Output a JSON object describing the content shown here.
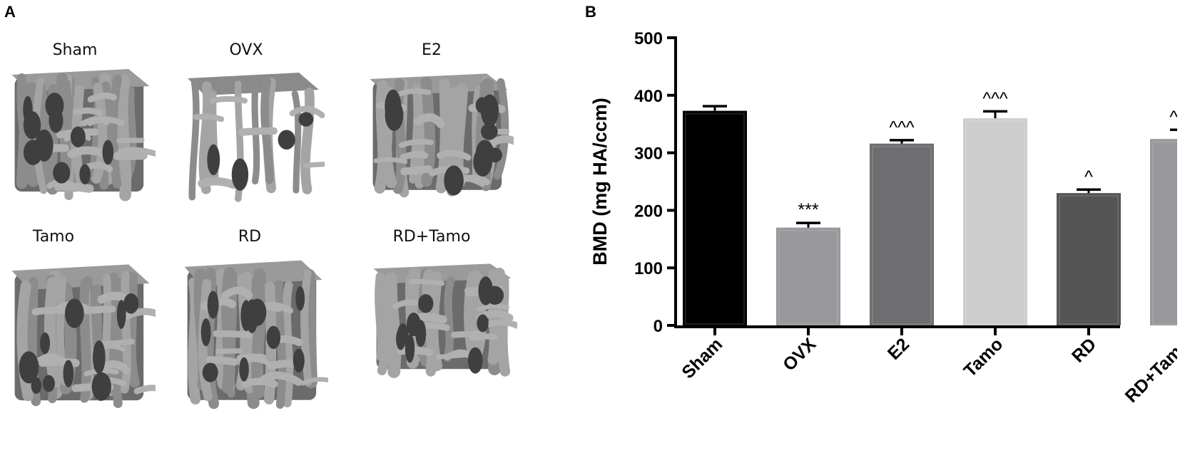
{
  "panels": {
    "a_letter": "A",
    "b_letter": "B"
  },
  "specimens": [
    {
      "label": "Sham"
    },
    {
      "label": "OVX"
    },
    {
      "label": "E2"
    },
    {
      "label": "Tamo"
    },
    {
      "label": "RD"
    },
    {
      "label": "RD+Tamo"
    }
  ],
  "chart_data": {
    "type": "bar",
    "categories": [
      "Sham",
      "OVX",
      "E2",
      "Tamo",
      "RD",
      "RD+Tamo"
    ],
    "values": [
      373,
      170,
      316,
      360,
      230,
      324
    ],
    "errors": [
      8,
      8,
      6,
      12,
      6,
      16
    ],
    "significance": [
      "",
      "***",
      "^^^",
      "^^^",
      "^",
      "^^^"
    ],
    "colors": [
      "#000000",
      "#97979c",
      "#6e6e70",
      "#cdcdcd",
      "#555555",
      "#98989c"
    ],
    "title": "",
    "xlabel": "",
    "ylabel": "BMD (mg HA/ccm)",
    "ylim": [
      0,
      500
    ],
    "yticks": [
      0,
      100,
      200,
      300,
      400,
      500
    ],
    "grid": false
  }
}
